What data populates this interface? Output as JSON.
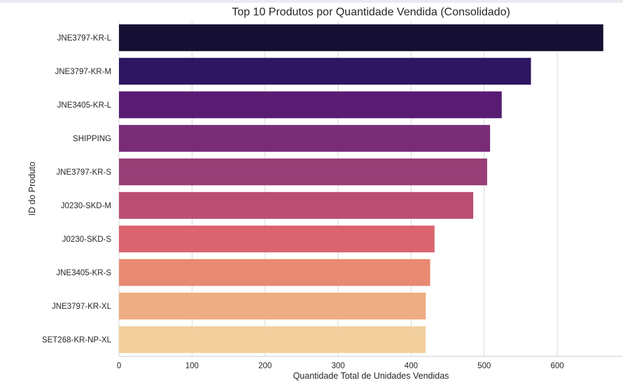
{
  "chart_data": {
    "type": "bar",
    "orientation": "horizontal",
    "title": "Top 10 Produtos por Quantidade Vendida (Consolidado)",
    "xlabel": "Quantidade Total de Unidades Vendidas",
    "ylabel": "ID do Produto",
    "categories": [
      "JNE3797-KR-L",
      "JNE3797-KR-M",
      "JNE3405-KR-L",
      "SHIPPING",
      "JNE3797-KR-S",
      "J0230-SKD-M",
      "J0230-SKD-S",
      "JNE3405-KR-S",
      "JNE3797-KR-XL",
      "SET268-KR-NP-XL"
    ],
    "values": [
      663,
      564,
      524,
      508,
      504,
      485,
      432,
      426,
      420,
      420
    ],
    "xlim": [
      0,
      690
    ],
    "xticks": [
      0,
      100,
      200,
      300,
      400,
      500,
      600
    ],
    "colors": [
      "#150f33",
      "#2f1660",
      "#581d73",
      "#782c76",
      "#973f76",
      "#bb4f73",
      "#da6470",
      "#e88a71",
      "#eead82",
      "#f2d09e"
    ],
    "grid": "vertical"
  }
}
